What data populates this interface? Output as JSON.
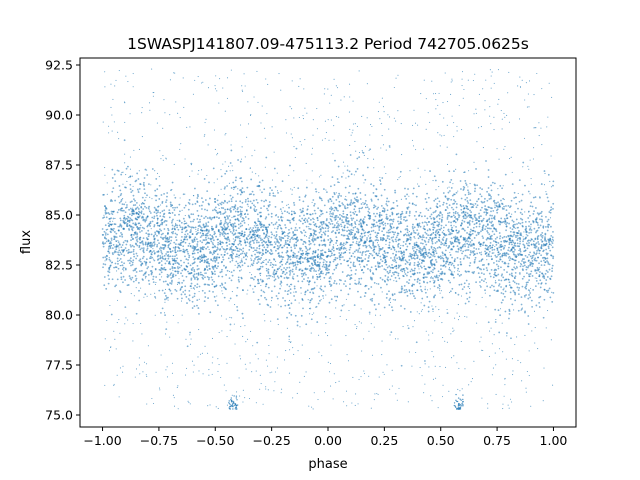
{
  "chart_data": {
    "type": "scatter",
    "title": "1SWASPJ141807.09-475113.2 Period 742705.0625s",
    "xlabel": "phase",
    "ylabel": "flux",
    "xlim": [
      -1.1,
      1.1
    ],
    "ylim": [
      74.4,
      92.85
    ],
    "grid": false,
    "legend": "none",
    "x_ticks": [
      -1.0,
      -0.75,
      -0.5,
      -0.25,
      0.0,
      0.25,
      0.5,
      0.75,
      1.0
    ],
    "x_tick_labels": [
      "−1.00",
      "−0.75",
      "−0.50",
      "−0.25",
      "0.00",
      "0.25",
      "0.50",
      "0.75",
      "1.00"
    ],
    "y_ticks": [
      75.0,
      77.5,
      80.0,
      82.5,
      85.0,
      87.5,
      90.0,
      92.5
    ],
    "y_tick_labels": [
      "75.0",
      "77.5",
      "80.0",
      "82.5",
      "85.0",
      "87.5",
      "90.0",
      "92.5"
    ],
    "point_color": "#1f77b4",
    "x_range": [
      -1.0,
      1.0
    ],
    "y_range": [
      75.3,
      92.3
    ],
    "core_center": 83.6,
    "core_band": [
      81.0,
      86.5
    ],
    "sample_points": [
      {
        "x": -1.0,
        "y": 83.5
      },
      {
        "x": -0.73,
        "y": 84.2
      },
      {
        "x": -0.5,
        "y": 84.1
      },
      {
        "x": -0.42,
        "y": 75.5
      },
      {
        "x": -0.25,
        "y": 84.2
      },
      {
        "x": 0.0,
        "y": 83.4
      },
      {
        "x": 0.25,
        "y": 84.3
      },
      {
        "x": 0.5,
        "y": 84.2
      },
      {
        "x": 0.58,
        "y": 75.5
      },
      {
        "x": 0.75,
        "y": 84.2
      },
      {
        "x": 1.0,
        "y": 83.5
      }
    ]
  }
}
